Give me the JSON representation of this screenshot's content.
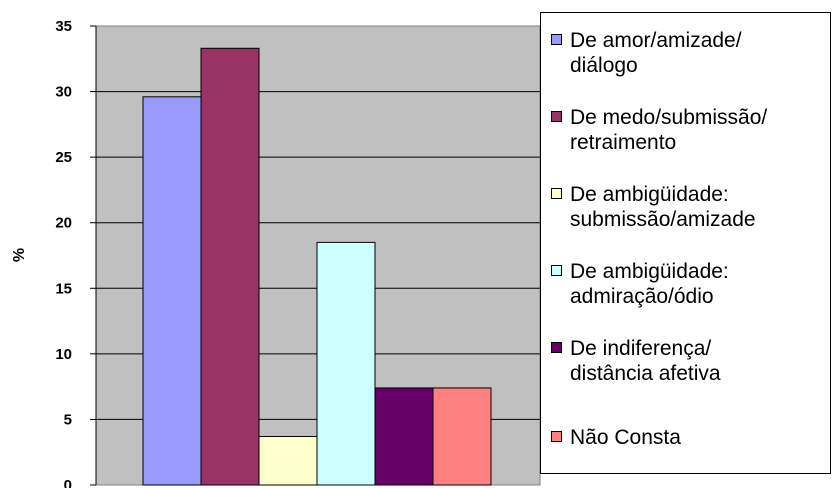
{
  "chart_data": {
    "type": "bar",
    "ylabel": "%",
    "ylim": [
      0,
      35
    ],
    "yticks": [
      "0",
      "5",
      "10",
      "15",
      "20",
      "25",
      "30",
      "35"
    ],
    "grid": true,
    "legend_position": "right",
    "series": [
      {
        "name": "De amor/amizade/ diálogo",
        "values": [
          29.6
        ],
        "color": "#9999ff"
      },
      {
        "name": "De medo/submissão/ retraimento",
        "values": [
          33.3
        ],
        "color": "#993366"
      },
      {
        "name": "De ambigüidade: submissão/amizade",
        "values": [
          3.7
        ],
        "color": "#ffffcc"
      },
      {
        "name": "De ambigüidade: admiração/ódio",
        "values": [
          18.5
        ],
        "color": "#ccffff"
      },
      {
        "name": "De indiferença/ distância afetiva",
        "values": [
          7.4
        ],
        "color": "#660066"
      },
      {
        "name": "Não Consta",
        "values": [
          7.4
        ],
        "color": "#ff8080"
      }
    ]
  },
  "legend": {
    "items": [
      {
        "line1": "De amor/amizade/",
        "line2": "diálogo"
      },
      {
        "line1": "De medo/submissão/",
        "line2": "retraimento"
      },
      {
        "line1": "De ambigüidade:",
        "line2": "submissão/amizade"
      },
      {
        "line1": "De ambigüidade:",
        "line2": "admiração/ódio"
      },
      {
        "line1": "De indiferença/",
        "line2": "distância afetiva"
      },
      {
        "line1": "Não Consta",
        "line2": ""
      }
    ]
  },
  "colors": {
    "plot_background": "#c0c0c0",
    "gridline": "#000000",
    "bar_outline": "#000000"
  }
}
